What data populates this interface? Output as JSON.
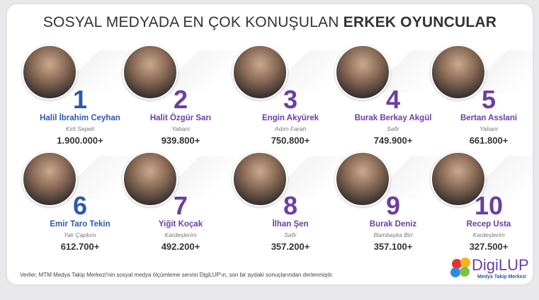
{
  "header": {
    "title_regular": "SOSYAL MEDYADA EN ÇOK KONUŞULAN",
    "title_bold": "ERKEK OYUNCULAR"
  },
  "items": [
    {
      "rank": "1",
      "name": "Halil İbrahim Ceyhan",
      "show": "Kirli Sepeti",
      "count": "1.900.000+",
      "color": "#2b5aa8"
    },
    {
      "rank": "2",
      "name": "Halit Özgür Sarı",
      "show": "Yabani",
      "count": "939.800+",
      "color": "#6b3fa0"
    },
    {
      "rank": "3",
      "name": "Engin Akyürek",
      "show": "Adım Farah",
      "count": "750.800+",
      "color": "#6b3fa0"
    },
    {
      "rank": "4",
      "name": "Burak Berkay Akgül",
      "show": "Safir",
      "count": "749.900+",
      "color": "#6b3fa0"
    },
    {
      "rank": "5",
      "name": "Bertan Asslani",
      "show": "Yabani",
      "count": "661.800+",
      "color": "#6b3fa0"
    },
    {
      "rank": "6",
      "name": "Emir Taro Tekin",
      "show": "Yalı Çapkını",
      "count": "612.700+",
      "color": "#2b5aa8"
    },
    {
      "rank": "7",
      "name": "Yiğit Koçak",
      "show": "Kardeşlerim",
      "count": "492.200+",
      "color": "#6b3fa0"
    },
    {
      "rank": "8",
      "name": "İlhan Şen",
      "show": "Safir",
      "count": "357.200+",
      "color": "#6b3fa0"
    },
    {
      "rank": "9",
      "name": "Burak Deniz",
      "show": "Bambaşka Biri",
      "count": "357.100+",
      "color": "#6b3fa0"
    },
    {
      "rank": "10",
      "name": "Recep Usta",
      "show": "Kardeşlerim",
      "count": "327.500+",
      "color": "#6b3fa0"
    }
  ],
  "footer": {
    "note": "Veriler, MTM Medya Takip Merkezi'nin sosyal medya ölçümleme servisi DigiLUP'ın, son bir aydaki sonuçlarından derlenmiştir.",
    "logo": "DigiLUP",
    "logo_sub": "Medya Takip Merkezi"
  }
}
